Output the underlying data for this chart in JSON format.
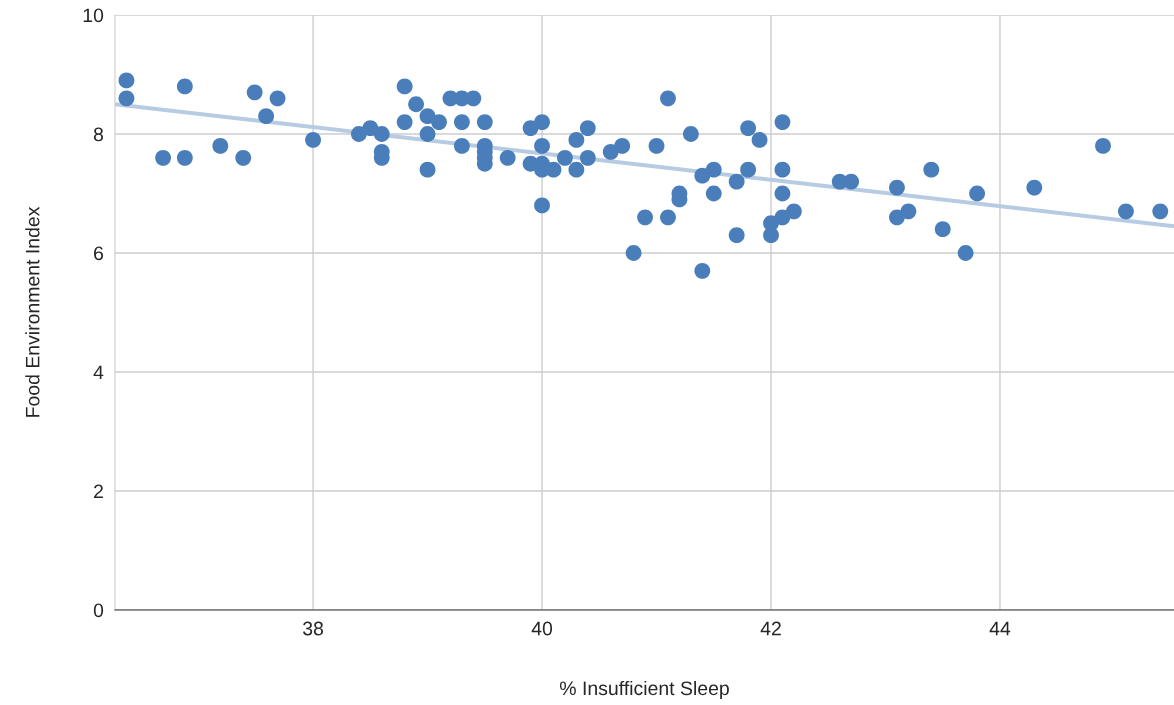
{
  "chart_data": {
    "type": "scatter",
    "xlabel": "% Insufficient Sleep",
    "ylabel": "Food Environment Index",
    "xlim": [
      36.27,
      45.52
    ],
    "ylim": [
      0,
      10
    ],
    "xticks": [
      38,
      40,
      42,
      44
    ],
    "yticks": [
      0,
      2,
      4,
      6,
      8,
      10
    ],
    "grid": true,
    "legend": false,
    "series": [
      {
        "marker": "circle",
        "color": "#4a7ebb",
        "x": [
          36.37,
          36.37,
          36.69,
          36.88,
          36.88,
          37.19,
          37.39,
          37.49,
          37.59,
          37.69,
          38.0,
          38.4,
          38.5,
          38.6,
          38.6,
          38.6,
          38.8,
          38.8,
          38.9,
          39.0,
          39.0,
          39.0,
          39.1,
          39.2,
          39.3,
          39.4,
          39.3,
          39.3,
          39.5,
          39.5,
          39.5,
          39.5,
          39.5,
          39.7,
          39.9,
          39.9,
          40.0,
          40.0,
          40.0,
          40.0,
          40.0,
          40.1,
          40.2,
          40.3,
          40.3,
          40.4,
          40.4,
          40.6,
          40.7,
          40.8,
          40.9,
          41.0,
          41.1,
          41.1,
          41.2,
          41.2,
          41.3,
          41.4,
          41.4,
          41.5,
          41.5,
          41.7,
          41.7,
          41.8,
          41.8,
          41.9,
          42.0,
          42.0,
          42.1,
          42.1,
          42.1,
          42.1,
          42.2,
          42.6,
          42.7,
          43.1,
          43.1,
          43.2,
          43.4,
          43.5,
          43.7,
          43.8,
          44.3,
          44.9,
          45.1,
          45.4
        ],
        "values": [
          8.9,
          8.6,
          7.6,
          8.8,
          7.6,
          7.8,
          7.6,
          8.7,
          8.3,
          8.6,
          7.9,
          8.0,
          8.1,
          8.0,
          7.7,
          7.6,
          8.8,
          8.2,
          8.5,
          8.3,
          8.0,
          7.4,
          8.2,
          8.6,
          8.6,
          8.6,
          8.2,
          7.8,
          8.2,
          7.8,
          7.7,
          7.6,
          7.5,
          7.6,
          8.1,
          7.5,
          8.2,
          7.8,
          7.5,
          7.4,
          6.8,
          7.4,
          7.6,
          7.9,
          7.4,
          8.1,
          7.6,
          7.7,
          7.8,
          6.0,
          6.6,
          7.8,
          8.6,
          6.6,
          7.0,
          6.9,
          8.0,
          7.3,
          5.7,
          7.4,
          7.0,
          7.2,
          6.3,
          8.1,
          7.4,
          7.9,
          6.5,
          6.3,
          8.2,
          7.4,
          7.0,
          6.6,
          6.7,
          7.2,
          7.2,
          7.1,
          6.6,
          6.7,
          7.4,
          6.4,
          6.0,
          7.0,
          7.1,
          7.8,
          6.7,
          6.7
        ]
      },
      {
        "type": "line",
        "color": "#b7cbe3",
        "x": [
          36.27,
          45.52
        ],
        "values": [
          8.5,
          6.45
        ]
      }
    ]
  }
}
